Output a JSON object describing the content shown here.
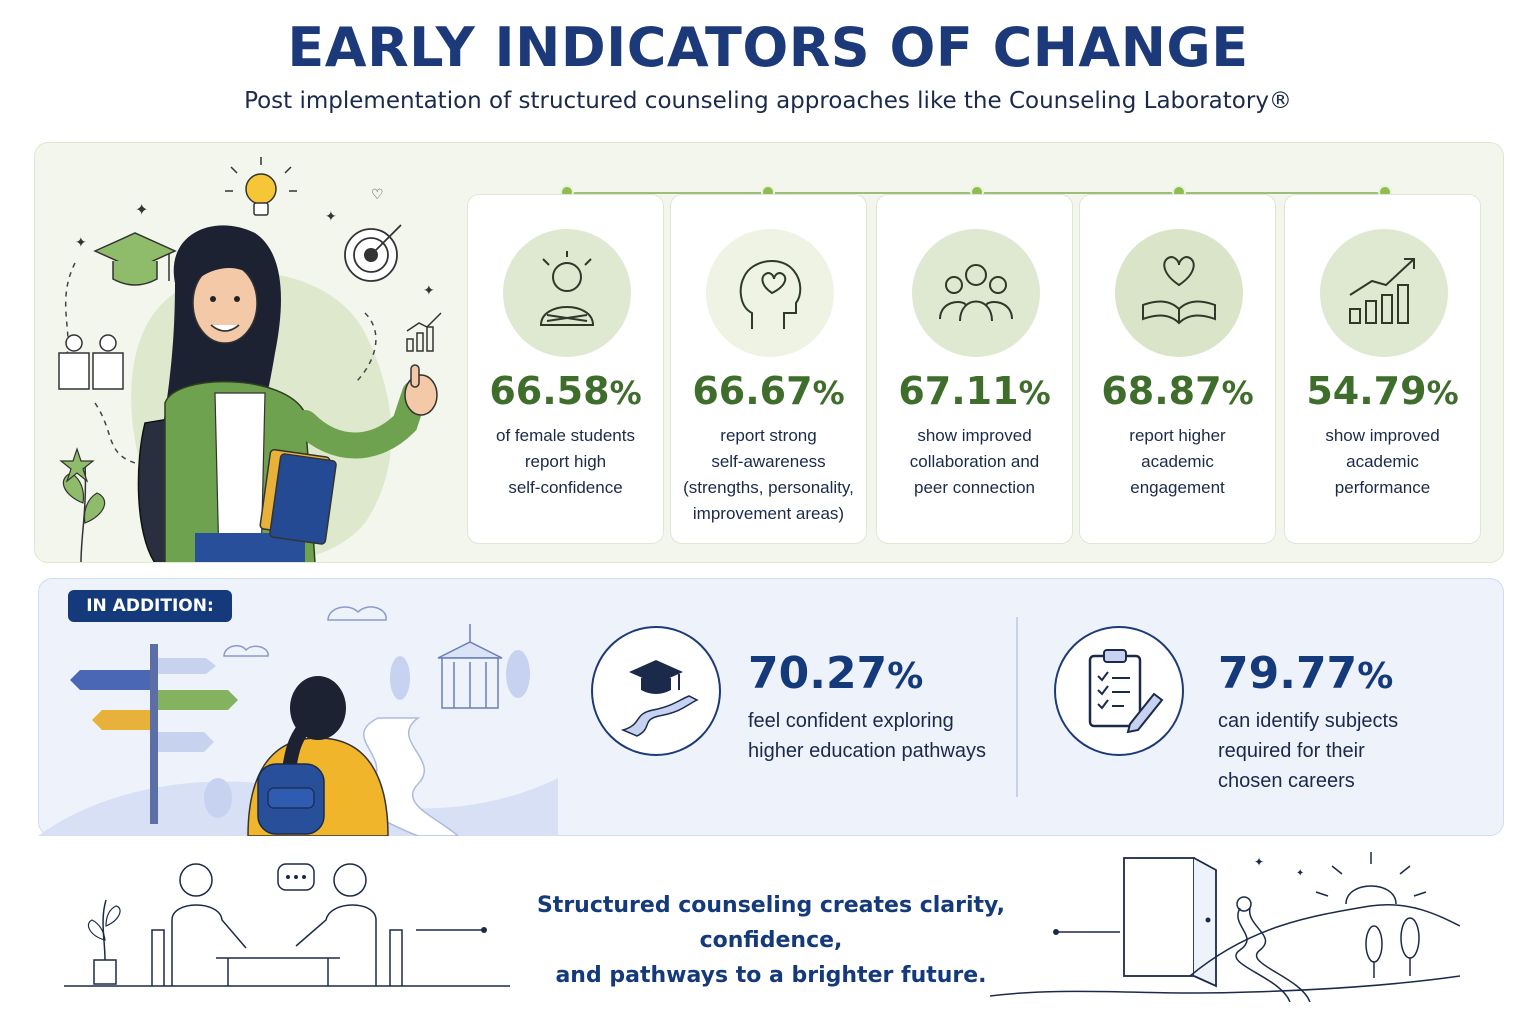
{
  "header": {
    "title": "EARLY INDICATORS OF CHANGE",
    "subtitle": "Post implementation of structured counseling approaches like the Counseling Laboratory®"
  },
  "indicators": [
    {
      "value": "66.58",
      "unit": "%",
      "description": "of female students\nreport high\nself-confidence",
      "icon": "confident-student-icon"
    },
    {
      "value": "66.67",
      "unit": "%",
      "description": "report strong\nself-awareness\n(strengths, personality,\nimprovement areas)",
      "icon": "head-heart-icon"
    },
    {
      "value": "67.11",
      "unit": "%",
      "description": "show improved\ncollaboration and\npeer connection",
      "icon": "group-icon"
    },
    {
      "value": "68.87",
      "unit": "%",
      "description": "report higher\nacademic\nengagement",
      "icon": "book-heart-icon"
    },
    {
      "value": "54.79",
      "unit": "%",
      "description": "show improved\nacademic\nperformance",
      "icon": "growth-chart-icon"
    }
  ],
  "addition": {
    "badge": "IN ADDITION:",
    "items": [
      {
        "value": "70.27",
        "unit": "%",
        "description": "feel confident exploring\nhigher education pathways",
        "icon": "graduation-path-icon"
      },
      {
        "value": "79.77",
        "unit": "%",
        "description": "can identify subjects\nrequired for their\nchosen careers",
        "icon": "clipboard-checklist-icon"
      }
    ]
  },
  "footer": {
    "tagline": "Structured counseling creates clarity, confidence,\nand pathways to a brighter future."
  },
  "colors": {
    "title": "#1c3a7a",
    "green_value": "#3f6d2c",
    "blue_value": "#153a7c",
    "green_panel": "#f3f6ec",
    "blue_panel": "#eef2fb"
  }
}
